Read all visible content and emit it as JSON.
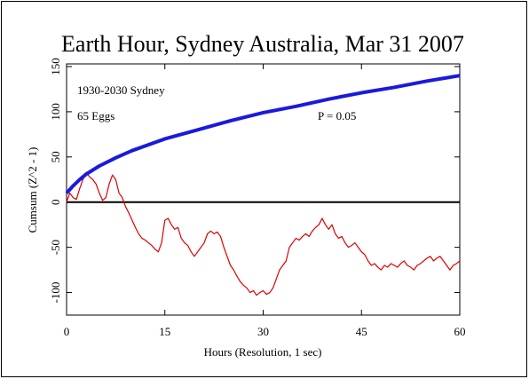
{
  "chart_data": {
    "type": "line",
    "title": "Earth Hour, Sydney Australia, Mar 31 2007",
    "x_label": "Hours (Resolution, 1 sec)",
    "y_label": "Cumsum (Z^2 - 1)",
    "xlim": [
      0,
      60
    ],
    "ylim": [
      -125,
      150
    ],
    "xticks": [
      0,
      15,
      30,
      45,
      60
    ],
    "yticks": [
      -100,
      -50,
      0,
      50,
      100,
      150
    ],
    "reference_line": 0,
    "annotations": [
      {
        "text": "65 Eggs",
        "color": "#cc0000"
      }
    ],
    "series": [
      {
        "name": "1930-2030 Sydney",
        "color": "#dd0000",
        "x": [
          0,
          0.5,
          1,
          1.5,
          2,
          2.5,
          3,
          3.5,
          4,
          4.5,
          5,
          5.5,
          6,
          6.5,
          7,
          7.5,
          8,
          8.5,
          9,
          9.5,
          10,
          10.5,
          11,
          11.5,
          12,
          12.5,
          13,
          13.5,
          14,
          14.5,
          15,
          15.5,
          16,
          16.5,
          17,
          17.5,
          18,
          18.5,
          19,
          19.5,
          20,
          20.5,
          21,
          21.5,
          22,
          22.5,
          23,
          23.5,
          24,
          24.5,
          25,
          25.5,
          26,
          26.5,
          27,
          27.5,
          28,
          28.5,
          29,
          29.5,
          30,
          30.5,
          31,
          31.5,
          32,
          32.5,
          33,
          33.5,
          34,
          34.5,
          35,
          35.5,
          36,
          36.5,
          37,
          37.5,
          38,
          38.5,
          39,
          39.5,
          40,
          40.5,
          41,
          41.5,
          42,
          42.5,
          43,
          43.5,
          44,
          44.5,
          45,
          45.5,
          46,
          46.5,
          47,
          47.5,
          48,
          48.5,
          49,
          49.5,
          50,
          50.5,
          51,
          51.5,
          52,
          52.5,
          53,
          53.5,
          54,
          54.5,
          55,
          55.5,
          56,
          56.5,
          57,
          57.5,
          58,
          58.5,
          59,
          59.5,
          60
        ],
        "values": [
          0,
          10,
          5,
          3,
          15,
          25,
          33,
          28,
          25,
          20,
          10,
          2,
          5,
          20,
          30,
          25,
          10,
          5,
          -5,
          -12,
          -20,
          -28,
          -35,
          -40,
          -42,
          -45,
          -48,
          -52,
          -55,
          -45,
          -20,
          -18,
          -25,
          -30,
          -28,
          -40,
          -45,
          -48,
          -55,
          -60,
          -55,
          -50,
          -45,
          -35,
          -32,
          -35,
          -33,
          -38,
          -50,
          -60,
          -70,
          -75,
          -82,
          -88,
          -92,
          -95,
          -100,
          -98,
          -103,
          -100,
          -98,
          -102,
          -100,
          -95,
          -85,
          -75,
          -70,
          -65,
          -50,
          -45,
          -40,
          -42,
          -38,
          -35,
          -38,
          -32,
          -28,
          -25,
          -18,
          -25,
          -30,
          -25,
          -35,
          -40,
          -38,
          -45,
          -50,
          -48,
          -45,
          -50,
          -55,
          -58,
          -65,
          -70,
          -68,
          -72,
          -75,
          -70,
          -72,
          -68,
          -70,
          -72,
          -68,
          -65,
          -70,
          -72,
          -75,
          -70,
          -68,
          -65,
          -62,
          -60,
          -65,
          -62,
          -60,
          -65,
          -70,
          -75,
          -70,
          -68,
          -65
        ]
      },
      {
        "name": "P = 0.05",
        "color": "#1a1adc",
        "x": [
          0,
          0.5,
          1,
          2,
          3,
          5,
          7.5,
          10,
          15,
          20,
          25,
          30,
          35,
          40,
          45,
          50,
          55,
          60
        ],
        "values": [
          10,
          14,
          18,
          25,
          31,
          40,
          49,
          57,
          70,
          80,
          90,
          99,
          106,
          114,
          121,
          127,
          134,
          140
        ]
      }
    ]
  }
}
